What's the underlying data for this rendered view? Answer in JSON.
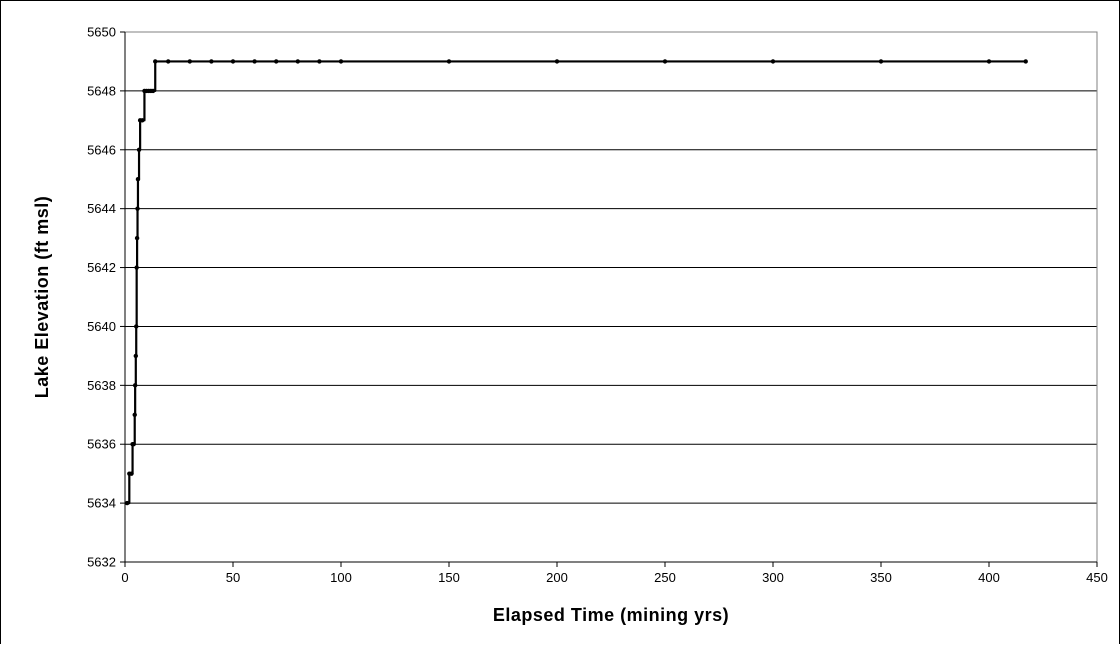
{
  "chart_data": {
    "type": "line",
    "title": "",
    "xlabel": "Elapsed Time (mining yrs)",
    "ylabel": "Lake Elevation (ft msl)",
    "xlim": [
      0,
      450
    ],
    "ylim": [
      5632,
      5650
    ],
    "x_ticks": [
      "0",
      "50",
      "100",
      "150",
      "200",
      "250",
      "300",
      "350",
      "400",
      "450"
    ],
    "y_ticks": [
      "5632",
      "5634",
      "5636",
      "5638",
      "5640",
      "5642",
      "5644",
      "5646",
      "5648",
      "5650"
    ],
    "grid": "horizontal",
    "legend": "none",
    "series": [
      {
        "color": "#000000",
        "marker": "circle",
        "x": [
          1,
          2,
          3,
          3.5,
          4,
          4.5,
          4.7,
          5,
          5.2,
          5.4,
          5.6,
          5.8,
          6,
          6.5,
          7,
          8,
          9,
          10,
          11,
          12,
          13,
          14,
          20,
          30,
          40,
          50,
          60,
          70,
          80,
          90,
          100,
          150,
          200,
          250,
          300,
          350,
          400,
          417
        ],
        "y": [
          5634,
          5635,
          5635,
          5636,
          5636,
          5637,
          5638,
          5639,
          5640,
          5642,
          5643,
          5644,
          5645,
          5646,
          5647,
          5647,
          5648,
          5648,
          5648,
          5648,
          5648,
          5649,
          5649,
          5649,
          5649,
          5649,
          5649,
          5649,
          5649,
          5649,
          5649,
          5649,
          5649,
          5649,
          5649,
          5649,
          5649,
          5649
        ]
      }
    ]
  }
}
